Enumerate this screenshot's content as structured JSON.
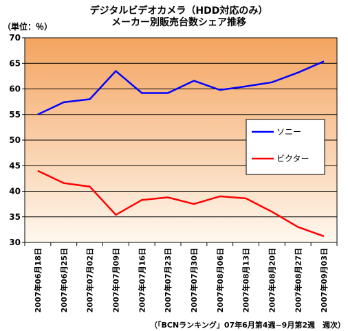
{
  "chart_data": {
    "type": "line",
    "title": "デジタルビデオカメラ（HDD対応のみ）",
    "subtitle": "メーカー別販売台数シェア推移",
    "ylabel": "（単位：％）",
    "xlabel": "",
    "source_note": "（「BCNランキング」07年6月第4週−9月第2週　週次）",
    "ylim": [
      30,
      70
    ],
    "yticks": [
      30,
      35,
      40,
      45,
      50,
      55,
      60,
      65,
      70
    ],
    "categories": [
      "2007年06月18日",
      "2007年06月25日",
      "2007年07月02日",
      "2007年07月09日",
      "2007年07月16日",
      "2007年07月23日",
      "2007年07月30日",
      "2007年08月06日",
      "2007年08月13日",
      "2007年08月20日",
      "2007年08月27日",
      "2007年09月03日"
    ],
    "series": [
      {
        "name": "ソニー",
        "color": "#0000ff",
        "values": [
          55.0,
          57.4,
          58.0,
          63.5,
          59.2,
          59.2,
          61.6,
          59.8,
          60.5,
          61.3,
          63.2,
          65.4
        ]
      },
      {
        "name": "ビクター",
        "color": "#ff0000",
        "values": [
          44.0,
          41.6,
          40.9,
          35.4,
          38.3,
          38.8,
          37.5,
          39.0,
          38.6,
          36.0,
          33.0,
          31.2
        ]
      }
    ],
    "legend_position": "right-middle",
    "grid": true
  },
  "colors": {
    "plot_gradient_top": "#f4a460",
    "plot_gradient_bottom": "#fff8ef",
    "gridline": "#000000"
  }
}
